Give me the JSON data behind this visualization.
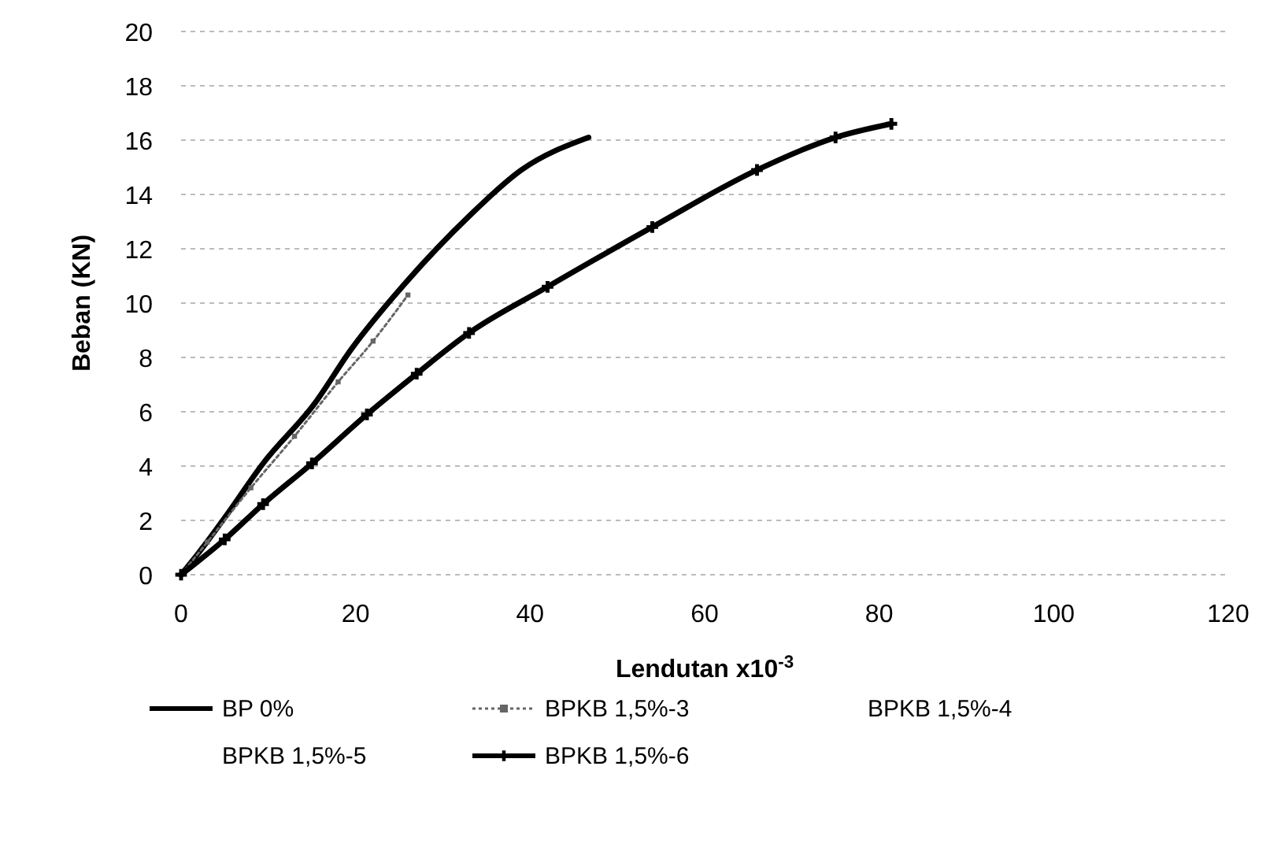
{
  "chart_data": {
    "type": "line",
    "xlabel": "Lendutan x10$^{-3}$",
    "ylabel": "Beban (KN)",
    "xlim": [
      0,
      120
    ],
    "xticks": [
      0,
      20,
      40,
      60,
      80,
      100,
      120
    ],
    "ylim": [
      0,
      20
    ],
    "yticks": [
      0,
      2,
      4,
      6,
      8,
      10,
      12,
      14,
      16,
      18,
      20
    ],
    "grid": "y",
    "legend": "bottom",
    "series": [
      {
        "name": "BP 0%",
        "color": "#000000",
        "line_style": "solid",
        "marker": "none",
        "x": [
          0,
          2,
          5,
          9.4,
          15.3,
          19.5,
          25.6,
          33,
          39,
          46.7
        ],
        "values": [
          0,
          0.8,
          2.1,
          4.1,
          6.3,
          8.3,
          10.7,
          13.2,
          14.9,
          16.1
        ]
      },
      {
        "name": "BPKB 1,5%-3",
        "color": "#666666",
        "line_style": "dotted",
        "marker": "square",
        "x": [
          0,
          3,
          8,
          13,
          18,
          22,
          26
        ],
        "values": [
          0,
          1.2,
          3.2,
          5.1,
          7.1,
          8.6,
          10.3
        ]
      },
      {
        "name": "BPKB 1,5%-4"
      },
      {
        "name": "BPKB 1,5%-5"
      },
      {
        "name": "BPKB 1,5%-6",
        "color": "#000000",
        "line_style": "solid",
        "marker": "cross",
        "x": [
          0,
          5,
          9.4,
          15,
          21.3,
          27,
          33,
          42,
          54,
          66,
          75,
          81.4
        ],
        "values": [
          0,
          1.3,
          2.6,
          4.1,
          5.9,
          7.4,
          8.9,
          10.6,
          12.8,
          14.9,
          16.1,
          16.6
        ]
      }
    ]
  }
}
